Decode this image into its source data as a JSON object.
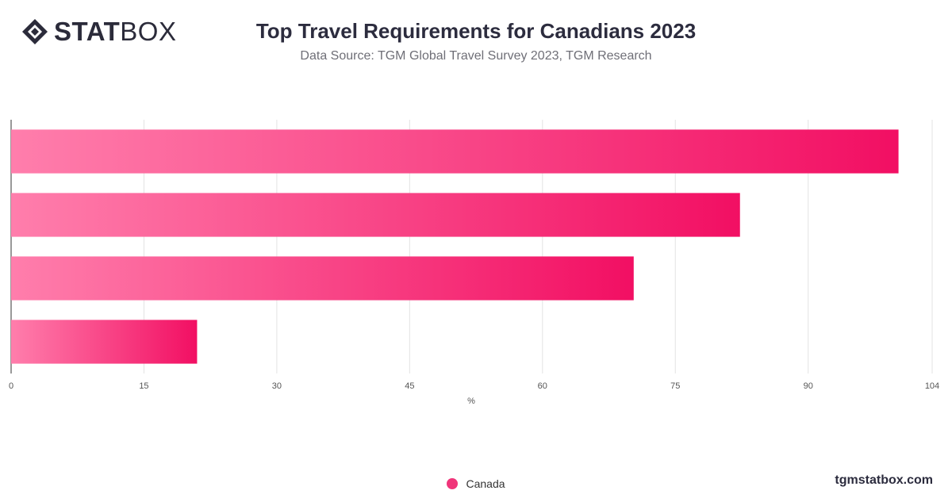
{
  "brand": {
    "logo_bold": "STAT",
    "logo_light": "BOX",
    "site": "tgmstatbox.com"
  },
  "chart_data": {
    "type": "bar",
    "orientation": "horizontal",
    "title": "Top Travel Requirements for Canadians 2023",
    "subtitle": "Data Source: TGM Global Travel Survey 2023, TGM Research",
    "xlabel": "%",
    "ylabel": "",
    "xlim": [
      0,
      104
    ],
    "xticks": [
      0,
      15,
      30,
      45,
      60,
      75,
      90,
      104
    ],
    "grid": true,
    "legend_position": "bottom-center",
    "categories": [
      "",
      "",
      "",
      ""
    ],
    "series": [
      {
        "name": "Canada",
        "values": [
          100.2,
          82.3,
          70.3,
          21.0
        ],
        "color_start": "#ff7eac",
        "color_end": "#f20f63"
      }
    ]
  }
}
